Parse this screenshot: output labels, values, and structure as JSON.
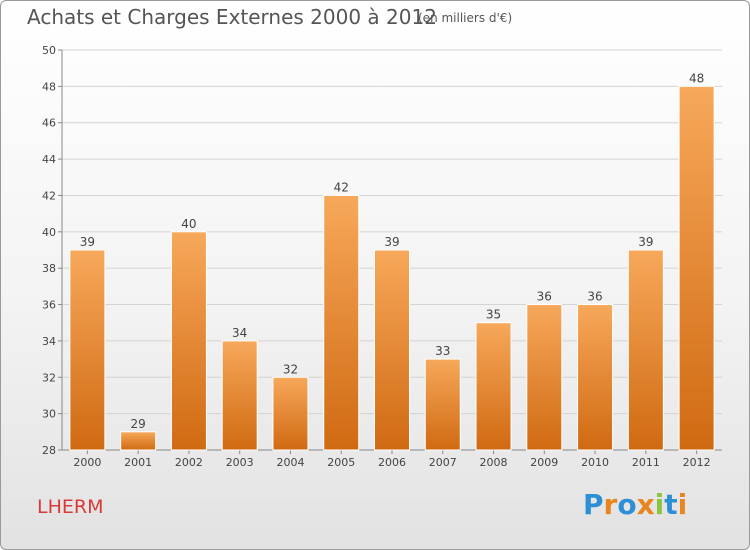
{
  "header": {
    "title": "Achats et Charges Externes 2000 à 2012",
    "unit": "(en milliers d'€)"
  },
  "footer": {
    "city": "LHERM",
    "logo": "Proxiti"
  },
  "colors": {
    "bar_light": "#f7a85a",
    "bar_dark": "#d06a12",
    "city_text": "#d83a3a",
    "logo_letters": [
      "#2d8fd5",
      "#e9851e",
      "#2d8fd5",
      "#e9851e",
      "#8cc43f",
      "#2d8fd5",
      "#e9851e"
    ]
  },
  "chart_data": {
    "type": "bar",
    "title": "Achats et Charges Externes 2000 à 2012",
    "subtitle": "(en milliers d'€)",
    "categories": [
      "2000",
      "2001",
      "2002",
      "2003",
      "2004",
      "2005",
      "2006",
      "2007",
      "2008",
      "2009",
      "2010",
      "2011",
      "2012"
    ],
    "values": [
      39,
      29,
      40,
      34,
      32,
      42,
      39,
      33,
      35,
      36,
      36,
      39,
      48
    ],
    "ylim": [
      28,
      50
    ],
    "yticks": [
      28,
      30,
      32,
      34,
      36,
      38,
      40,
      42,
      44,
      46,
      48,
      50
    ],
    "grid": true,
    "xlabel": "",
    "ylabel": ""
  }
}
